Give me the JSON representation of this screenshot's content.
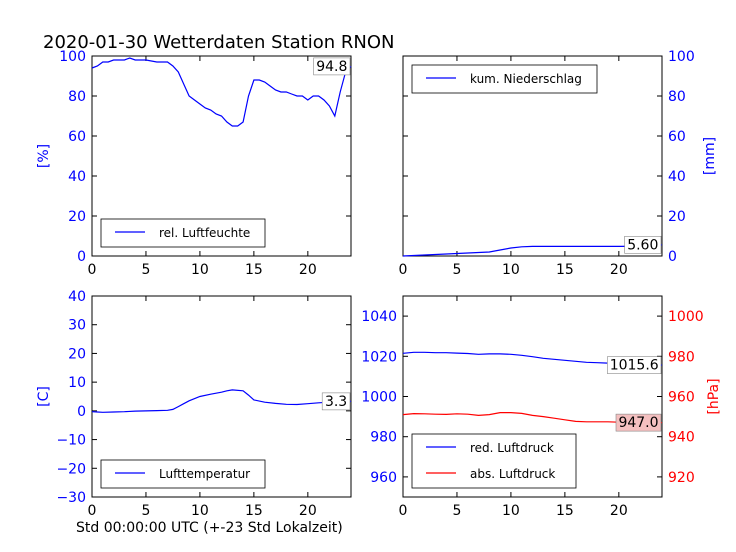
{
  "title": "2020-01-30 Wetterdaten Station RNON",
  "xlabel": "Std 00:00:00 UTC (+-23 Std Lokalzeit)",
  "colors": {
    "blue": "#0000ff",
    "red": "#ff0000",
    "redbox": "#f4c0c0"
  },
  "chart_data": [
    {
      "type": "line",
      "xlim": [
        0,
        24
      ],
      "ylim": [
        0,
        100
      ],
      "xticks": [
        0,
        5,
        10,
        15,
        20
      ],
      "yticks": [
        0,
        20,
        40,
        60,
        80,
        100
      ],
      "ylabel": "[%]",
      "last_value": "94.8",
      "legend": "lower-left",
      "series": [
        {
          "name": "rel. Luftfeuchte",
          "color": "#0000ff",
          "x": [
            0,
            0.5,
            1,
            1.5,
            2,
            2.5,
            3,
            3.5,
            4,
            5,
            6,
            7,
            7.5,
            8,
            8.5,
            9,
            9.5,
            10,
            10.5,
            11,
            11.5,
            12,
            12.5,
            13,
            13.5,
            14,
            14.5,
            15,
            15.5,
            16,
            16.5,
            17,
            17.5,
            18,
            18.5,
            19,
            19.5,
            20,
            20.5,
            21,
            21.5,
            22,
            22.5,
            23,
            23.5,
            24
          ],
          "y": [
            94,
            95,
            97,
            97,
            98,
            98,
            98,
            99,
            98,
            98,
            97,
            97,
            95,
            92,
            86,
            80,
            78,
            76,
            74,
            73,
            71,
            70,
            67,
            65,
            65,
            67,
            80,
            88,
            88,
            87,
            85,
            83,
            82,
            82,
            81,
            80,
            80,
            78,
            80,
            80,
            78,
            75,
            70,
            82,
            92,
            94.8
          ]
        }
      ]
    },
    {
      "type": "line",
      "xlim": [
        0,
        24
      ],
      "ylim": [
        0,
        100
      ],
      "xticks": [
        0,
        5,
        10,
        15,
        20
      ],
      "yticks": [
        0,
        20,
        40,
        60,
        80,
        100
      ],
      "ylabel": "[mm]",
      "last_value": "5.60",
      "legend": "upper-left",
      "series": [
        {
          "name": "kum. Niederschlag",
          "color": "#0000ff",
          "x": [
            0,
            2,
            4,
            6,
            8,
            9,
            10,
            11,
            12,
            14,
            16,
            18,
            20,
            22,
            23,
            24
          ],
          "y": [
            0,
            0.5,
            1.0,
            1.5,
            2.0,
            3.0,
            4.0,
            4.6,
            4.8,
            4.8,
            4.8,
            4.8,
            4.8,
            4.9,
            5.2,
            5.6
          ]
        }
      ]
    },
    {
      "type": "line",
      "xlim": [
        0,
        24
      ],
      "ylim": [
        -30,
        40
      ],
      "xticks": [
        0,
        5,
        10,
        15,
        20
      ],
      "yticks": [
        -30,
        -20,
        -10,
        0,
        10,
        20,
        30,
        40
      ],
      "ylabel": "[C]",
      "last_value": "3.3",
      "legend": "lower-left",
      "series": [
        {
          "name": "Lufttemperatur",
          "color": "#0000ff",
          "x": [
            0,
            0.5,
            1,
            2,
            3,
            4,
            5,
            6,
            7,
            7.5,
            8,
            8.5,
            9,
            10,
            11,
            12,
            12.5,
            13,
            14,
            14.5,
            15,
            16,
            17,
            18,
            19,
            20,
            21,
            22,
            23,
            24
          ],
          "y": [
            -0.3,
            -0.4,
            -0.5,
            -0.4,
            -0.3,
            -0.1,
            0,
            0.1,
            0.2,
            0.5,
            1.5,
            2.5,
            3.5,
            5.0,
            5.8,
            6.5,
            7.0,
            7.3,
            7.0,
            5.5,
            3.8,
            3.0,
            2.6,
            2.3,
            2.2,
            2.5,
            2.8,
            3.0,
            3.2,
            3.3
          ]
        }
      ]
    },
    {
      "type": "line",
      "xlim": [
        0,
        24
      ],
      "ylim": [
        950,
        1050
      ],
      "ylim_right": [
        910,
        1010
      ],
      "xticks": [
        0,
        5,
        10,
        15,
        20
      ],
      "yticks": [
        960,
        980,
        1000,
        1020,
        1040
      ],
      "yticks_right": [
        920,
        940,
        960,
        980,
        1000
      ],
      "ylabel_right": "[hPa]",
      "last_values": [
        "1015.6",
        "947.0"
      ],
      "legend": "lower-left",
      "series": [
        {
          "name": "red. Luftdruck",
          "color": "#0000ff",
          "x": [
            0,
            1,
            2,
            3,
            4,
            5,
            6,
            7,
            8,
            9,
            10,
            11,
            12,
            13,
            14,
            15,
            16,
            17,
            18,
            19,
            20,
            21,
            22,
            23,
            24
          ],
          "y": [
            1021.5,
            1022,
            1022,
            1021.8,
            1021.8,
            1021.6,
            1021.4,
            1021.0,
            1021.2,
            1021.2,
            1021.0,
            1020.5,
            1019.8,
            1019.0,
            1018.5,
            1018.0,
            1017.5,
            1017.0,
            1016.8,
            1016.6,
            1016.5,
            1016.3,
            1016.2,
            1016.0,
            1015.6
          ]
        },
        {
          "name": "abs. Luftdruck",
          "color": "#ff0000",
          "axis": "right",
          "x": [
            0,
            1,
            2,
            3,
            4,
            5,
            6,
            7,
            8,
            9,
            10,
            11,
            12,
            13,
            14,
            15,
            16,
            17,
            18,
            19,
            20,
            21,
            22,
            23,
            24
          ],
          "y": [
            951,
            951.5,
            951.4,
            951.2,
            951.1,
            951.4,
            951.2,
            950.6,
            951.0,
            952.0,
            952.0,
            951.6,
            950.6,
            950.0,
            949.2,
            948.4,
            947.6,
            947.4,
            947.4,
            947.4,
            947.2,
            947.0,
            947.0,
            947.0,
            947.0
          ]
        }
      ]
    }
  ]
}
